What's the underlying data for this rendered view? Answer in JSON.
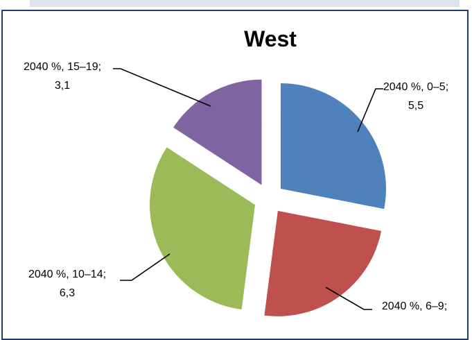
{
  "chart_data": {
    "type": "pie",
    "title": "West",
    "exploded": true,
    "legend": "none",
    "slices": [
      {
        "category": "2040 %, 0–5",
        "value": 5.5,
        "color": "#4f81bd",
        "label_lines": [
          "2040 %, 0–5;",
          "5,5"
        ]
      },
      {
        "category": "2040 %, 6–9",
        "value": 4.7,
        "color": "#c0504d",
        "label_lines": [
          "2040 %, 6–9;",
          ""
        ]
      },
      {
        "category": "2040 %, 10–14",
        "value": 6.3,
        "color": "#9bbb59",
        "label_lines": [
          "2040 %, 10–14;",
          "6,3"
        ]
      },
      {
        "category": "2040 %, 15–19",
        "value": 3.1,
        "color": "#8064a2",
        "label_lines": [
          "2040 %, 15–19;",
          "3,1"
        ]
      }
    ]
  }
}
